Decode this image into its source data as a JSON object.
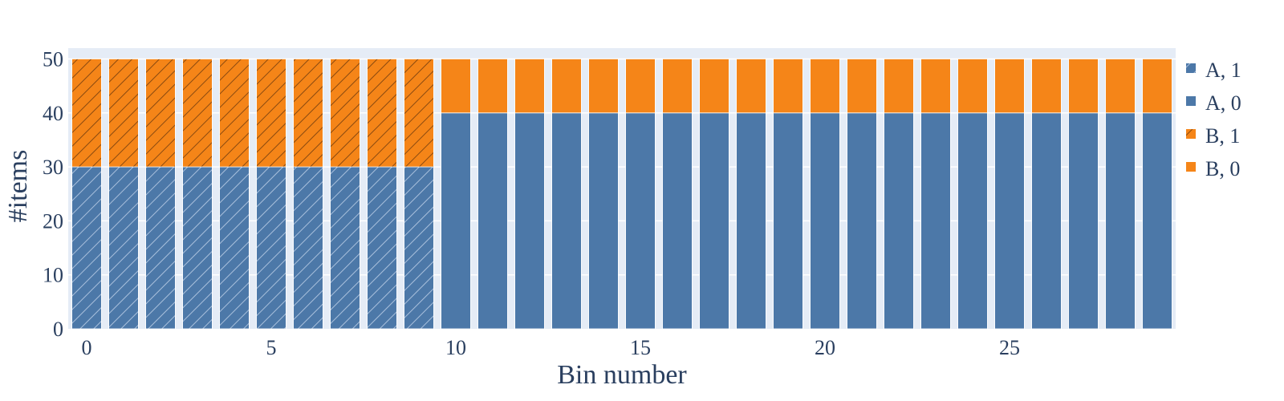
{
  "chart_data": {
    "type": "bar",
    "barmode": "stack",
    "xlabel": "Bin number",
    "ylabel": "#items",
    "xlim": [
      -0.5,
      29.5
    ],
    "ylim": [
      0,
      52
    ],
    "x_ticks": [
      0,
      5,
      10,
      15,
      20,
      25
    ],
    "y_ticks": [
      0,
      10,
      20,
      30,
      40,
      50
    ],
    "x": [
      0,
      1,
      2,
      3,
      4,
      5,
      6,
      7,
      8,
      9,
      10,
      11,
      12,
      13,
      14,
      15,
      16,
      17,
      18,
      19,
      20,
      21,
      22,
      23,
      24,
      25,
      26,
      27,
      28,
      29
    ],
    "grid": true,
    "legend_position": "right",
    "colors": {
      "A": "#4c78a8",
      "B": "#f58518",
      "plot_bg": "#e5ecf6",
      "text": "#2a3f5f"
    },
    "series": [
      {
        "name": "A, 1",
        "group": "A",
        "hatched": true,
        "values": [
          30,
          30,
          30,
          30,
          30,
          30,
          30,
          30,
          30,
          30,
          0,
          0,
          0,
          0,
          0,
          0,
          0,
          0,
          0,
          0,
          0,
          0,
          0,
          0,
          0,
          0,
          0,
          0,
          0,
          0
        ]
      },
      {
        "name": "A, 0",
        "group": "A",
        "hatched": false,
        "values": [
          0,
          0,
          0,
          0,
          0,
          0,
          0,
          0,
          0,
          0,
          40,
          40,
          40,
          40,
          40,
          40,
          40,
          40,
          40,
          40,
          40,
          40,
          40,
          40,
          40,
          40,
          40,
          40,
          40,
          40
        ]
      },
      {
        "name": "B, 1",
        "group": "B",
        "hatched": true,
        "values": [
          20,
          20,
          20,
          20,
          20,
          20,
          20,
          20,
          20,
          20,
          0,
          0,
          0,
          0,
          0,
          0,
          0,
          0,
          0,
          0,
          0,
          0,
          0,
          0,
          0,
          0,
          0,
          0,
          0,
          0
        ]
      },
      {
        "name": "B, 0",
        "group": "B",
        "hatched": false,
        "values": [
          0,
          0,
          0,
          0,
          0,
          0,
          0,
          0,
          0,
          0,
          10,
          10,
          10,
          10,
          10,
          10,
          10,
          10,
          10,
          10,
          10,
          10,
          10,
          10,
          10,
          10,
          10,
          10,
          10,
          10
        ]
      }
    ]
  }
}
